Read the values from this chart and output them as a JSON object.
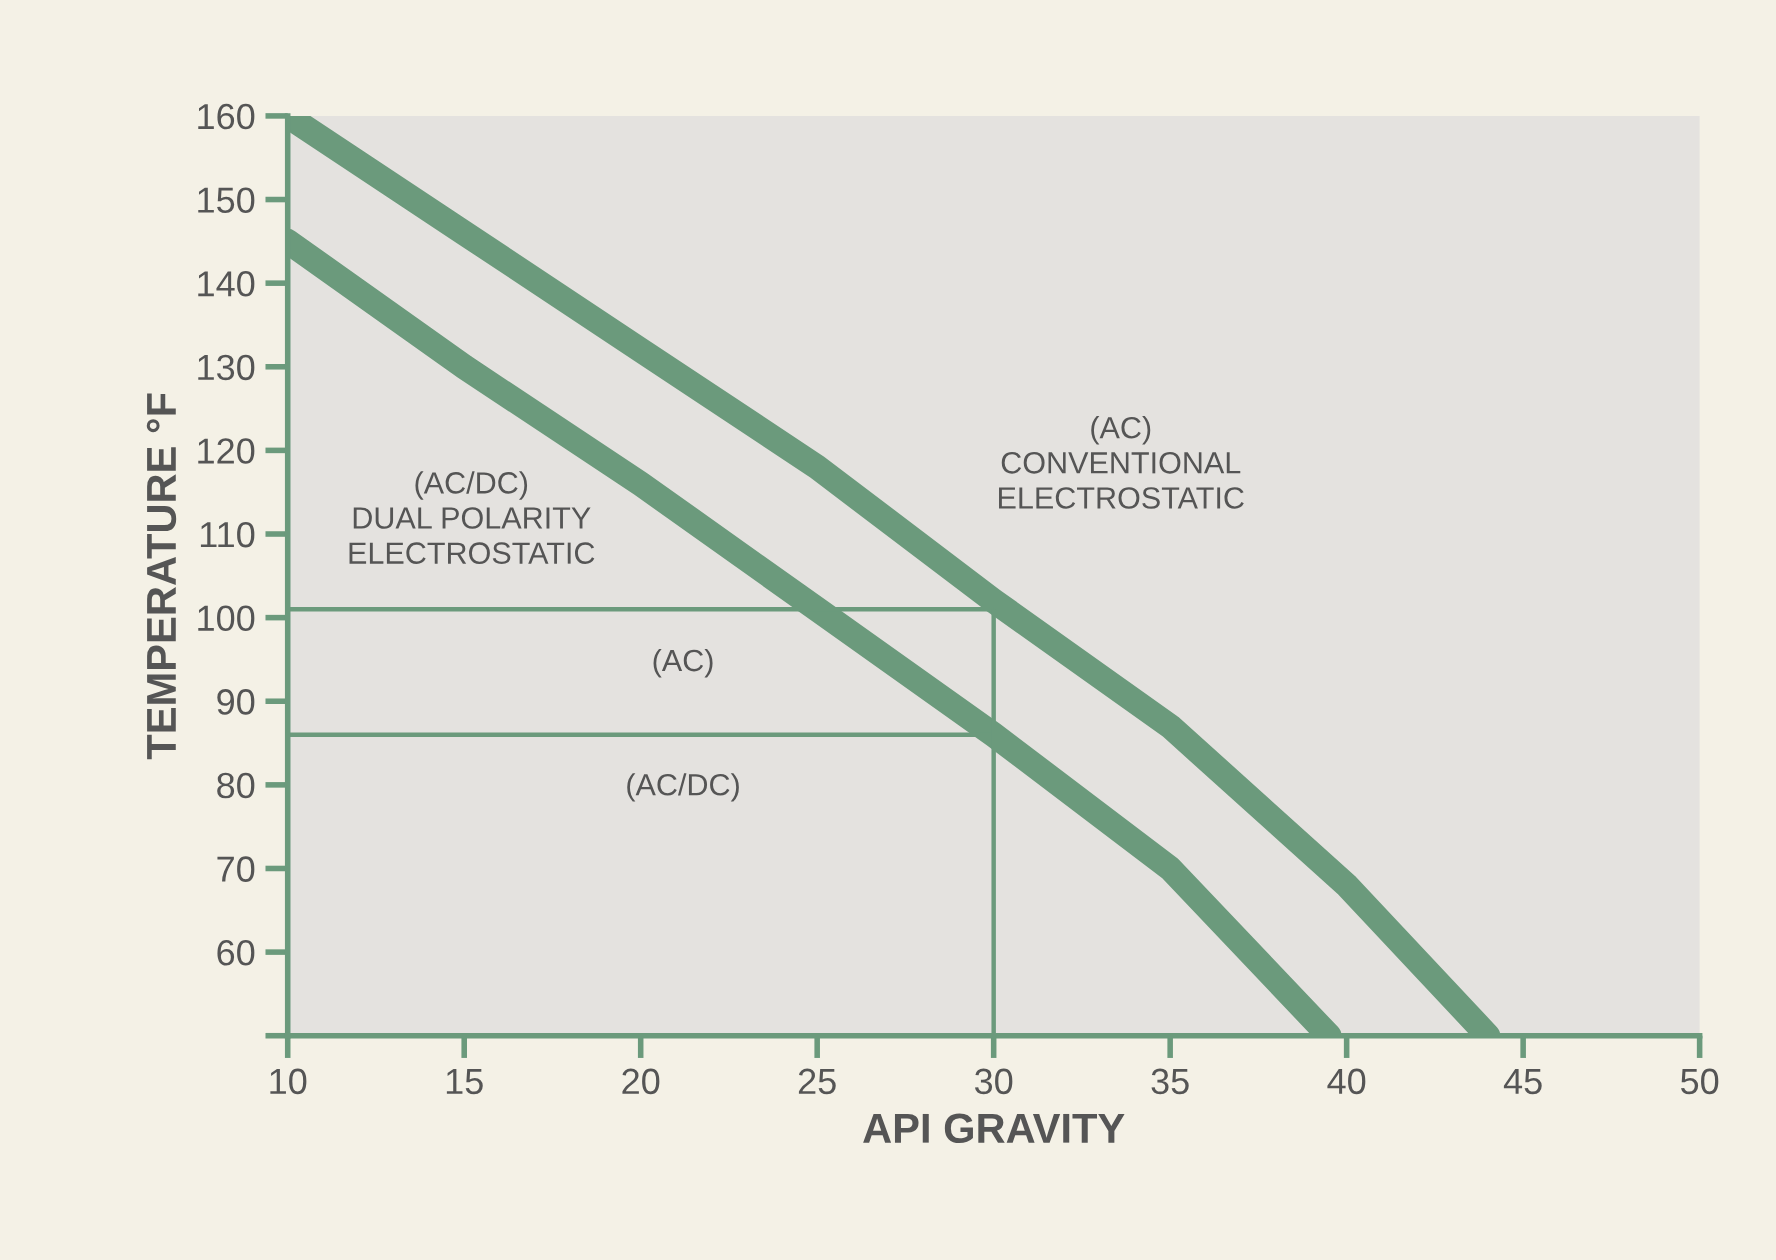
{
  "chart_data": {
    "type": "line",
    "xlabel": "API GRAVITY",
    "ylabel": "TEMPERATURE °F",
    "xlim": [
      10,
      50
    ],
    "ylim": [
      50,
      160
    ],
    "xticks": [
      10,
      15,
      20,
      25,
      30,
      35,
      40,
      45,
      50
    ],
    "yticks": [
      {
        "value": 50,
        "label": null
      },
      60,
      70,
      80,
      90,
      100,
      110,
      120,
      130,
      140,
      150,
      160
    ],
    "grid": false,
    "legend": false,
    "marker": "none",
    "series": [
      {
        "color": "#6b9a7c",
        "x": [
          10,
          15,
          20,
          25,
          30,
          35,
          40,
          44
        ],
        "values": [
          160,
          146,
          132,
          118,
          102,
          87,
          68,
          50
        ]
      },
      {
        "color": "#6b9a7c",
        "x": [
          10,
          15,
          20,
          25,
          30,
          35,
          39.5
        ],
        "values": [
          145,
          130,
          116,
          101,
          86,
          70,
          50
        ]
      },
      {
        "color": "#6b9a7c",
        "x": [
          10,
          30
        ],
        "values": [
          101,
          101
        ]
      },
      {
        "color": "#6b9a7c",
        "x": [
          10,
          30
        ],
        "values": [
          86,
          86
        ]
      },
      {
        "color": "#6b9a7c",
        "x": [
          30,
          30
        ],
        "values": [
          50,
          101
        ]
      }
    ],
    "annotations": [
      "(AC/DC)\nDUAL POLARITY\nELECTROSTATIC",
      "(AC)\nCONVENTIONAL\nELECTROSTATIC",
      "(AC)",
      "(AC/DC)"
    ]
  }
}
